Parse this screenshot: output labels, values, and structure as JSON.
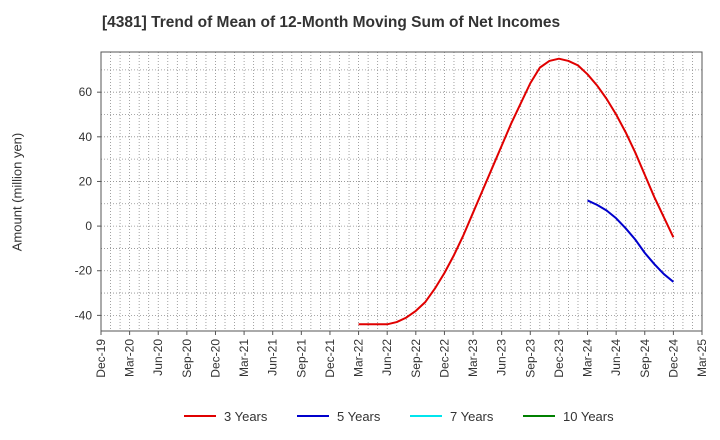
{
  "chart_data": {
    "type": "line",
    "title": "[4381]  Trend of Mean of 12-Month Moving Sum of Net Incomes",
    "ylabel": "Amount (million yen)",
    "xlabel": "",
    "ylim": [
      -47,
      78
    ],
    "y_ticks": [
      -40,
      -20,
      0,
      20,
      40,
      60
    ],
    "x_ticks": [
      "Dec-19",
      "Mar-20",
      "Jun-20",
      "Sep-20",
      "Dec-20",
      "Mar-21",
      "Jun-21",
      "Sep-21",
      "Dec-21",
      "Mar-22",
      "Jun-22",
      "Sep-22",
      "Dec-22",
      "Mar-23",
      "Jun-23",
      "Sep-23",
      "Dec-23",
      "Mar-24",
      "Jun-24",
      "Sep-24",
      "Dec-24",
      "Mar-25"
    ],
    "grid": true,
    "legend_position": "bottom",
    "series": [
      {
        "name": "3 Years",
        "color": "#e00000",
        "x": [
          "2022-03",
          "2022-04",
          "2022-05",
          "2022-06",
          "2022-07",
          "2022-08",
          "2022-09",
          "2022-10",
          "2022-11",
          "2022-12",
          "2023-01",
          "2023-02",
          "2023-03",
          "2023-04",
          "2023-05",
          "2023-06",
          "2023-07",
          "2023-08",
          "2023-09",
          "2023-10",
          "2023-11",
          "2023-12",
          "2024-01",
          "2024-02",
          "2024-03",
          "2024-04",
          "2024-05",
          "2024-06",
          "2024-07",
          "2024-08",
          "2024-09",
          "2024-10",
          "2024-11",
          "2024-12"
        ],
        "values": [
          -44,
          -44,
          -44,
          -44,
          -43,
          -41,
          -38,
          -34,
          -28,
          -21,
          -13,
          -4,
          6,
          16,
          26,
          36,
          46,
          55,
          64,
          71,
          74,
          75,
          74,
          72,
          68,
          63,
          57,
          50,
          42,
          33,
          23,
          13,
          4,
          -5
        ]
      },
      {
        "name": "5 Years",
        "color": "#0000cc",
        "x": [
          "2024-03",
          "2024-04",
          "2024-05",
          "2024-06",
          "2024-07",
          "2024-08",
          "2024-09",
          "2024-10",
          "2024-11",
          "2024-12"
        ],
        "values": [
          11.5,
          9.5,
          7,
          3.5,
          -1,
          -6,
          -12,
          -17,
          -21.5,
          -25
        ]
      },
      {
        "name": "7 Years",
        "color": "#00e5ee",
        "x": [],
        "values": []
      },
      {
        "name": "10 Years",
        "color": "#008000",
        "x": [],
        "values": []
      }
    ]
  }
}
